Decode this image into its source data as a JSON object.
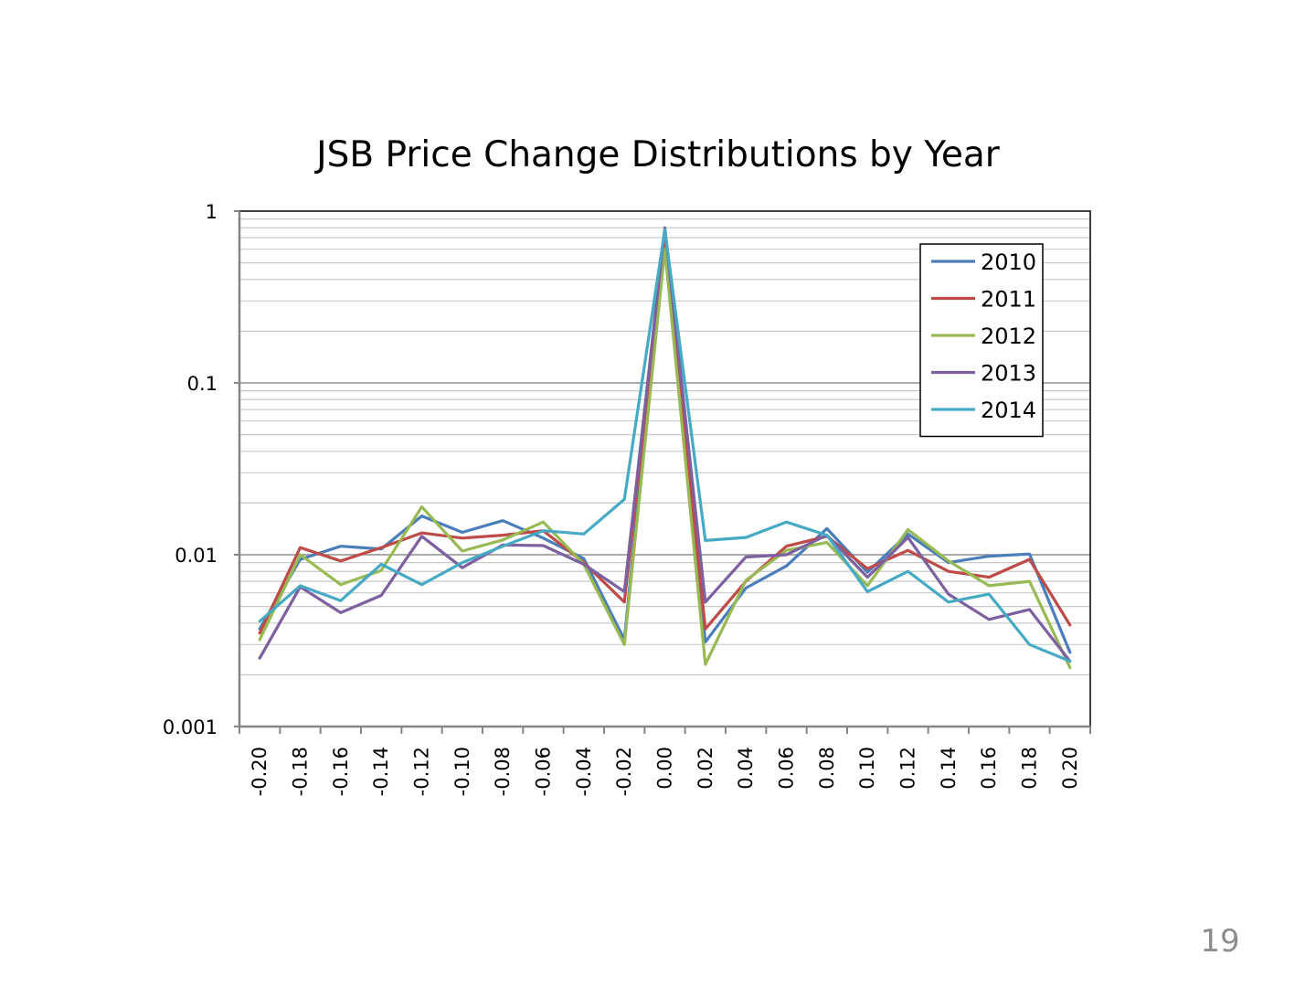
{
  "page_number": "19",
  "chart_data": {
    "type": "line",
    "title": "JSB Price Change Distributions by Year",
    "xlabel": "",
    "ylabel": "",
    "y_scale": "log",
    "ylim": [
      0.001,
      1
    ],
    "y_ticks": [
      "1",
      "0.1",
      "0.01",
      "0.001"
    ],
    "grid": true,
    "legend_position": "top-right",
    "categories": [
      "-0.20",
      "-0.18",
      "-0.16",
      "-0.14",
      "-0.12",
      "-0.10",
      "-0.08",
      "-0.06",
      "-0.04",
      "-0.02",
      "0.00",
      "0.02",
      "0.04",
      "0.06",
      "0.08",
      "0.10",
      "0.12",
      "0.14",
      "0.16",
      "0.18",
      "0.20"
    ],
    "series": [
      {
        "name": "2010",
        "color": "#4a7ebb",
        "values": [
          0.0037,
          0.0094,
          0.0112,
          0.0108,
          0.0168,
          0.0135,
          0.0158,
          0.0125,
          0.0095,
          0.0032,
          0.75,
          0.0031,
          0.0064,
          0.0086,
          0.0142,
          0.0079,
          0.0132,
          0.009,
          0.0098,
          0.0101,
          0.0027
        ]
      },
      {
        "name": "2011",
        "color": "#be4b48",
        "values": [
          0.0035,
          0.011,
          0.0092,
          0.011,
          0.0134,
          0.0125,
          0.013,
          0.0138,
          0.009,
          0.0053,
          0.7,
          0.0037,
          0.007,
          0.0112,
          0.0128,
          0.0083,
          0.0106,
          0.008,
          0.0074,
          0.0094,
          0.0039
        ]
      },
      {
        "name": "2012",
        "color": "#98b954",
        "values": [
          0.0032,
          0.01,
          0.0067,
          0.0081,
          0.019,
          0.0105,
          0.0122,
          0.0155,
          0.0088,
          0.003,
          0.6,
          0.0023,
          0.0071,
          0.0106,
          0.0118,
          0.0066,
          0.014,
          0.0092,
          0.0066,
          0.007,
          0.0022
        ]
      },
      {
        "name": "2013",
        "color": "#7d60a0",
        "values": [
          0.0025,
          0.0065,
          0.0046,
          0.0058,
          0.0128,
          0.0084,
          0.0114,
          0.0113,
          0.0088,
          0.0061,
          0.8,
          0.0053,
          0.0097,
          0.01,
          0.013,
          0.0074,
          0.0126,
          0.0059,
          0.0042,
          0.0048,
          0.0024
        ]
      },
      {
        "name": "2014",
        "color": "#46aac5",
        "values": [
          0.0041,
          0.0066,
          0.0054,
          0.0088,
          0.0067,
          0.009,
          0.0112,
          0.0138,
          0.0132,
          0.021,
          0.78,
          0.0121,
          0.0126,
          0.0155,
          0.013,
          0.0061,
          0.008,
          0.0053,
          0.0059,
          0.003,
          0.0024
        ]
      }
    ]
  }
}
